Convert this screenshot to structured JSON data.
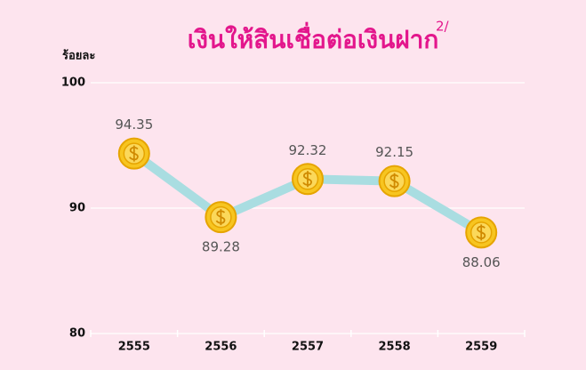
{
  "chart_data": {
    "type": "line",
    "title": "เงินให้สินเชื่อต่อเงินฝาก",
    "title_note": "2/",
    "y_label": "ร้อยละ",
    "categories": [
      "2555",
      "2556",
      "2557",
      "2558",
      "2559"
    ],
    "values": [
      94.35,
      89.28,
      92.32,
      92.15,
      88.06
    ],
    "color": "#a9dde1",
    "marker_color": "#f7c520",
    "ylim": [
      80,
      100
    ],
    "yticks": [
      80,
      90,
      100
    ],
    "grid": true
  }
}
